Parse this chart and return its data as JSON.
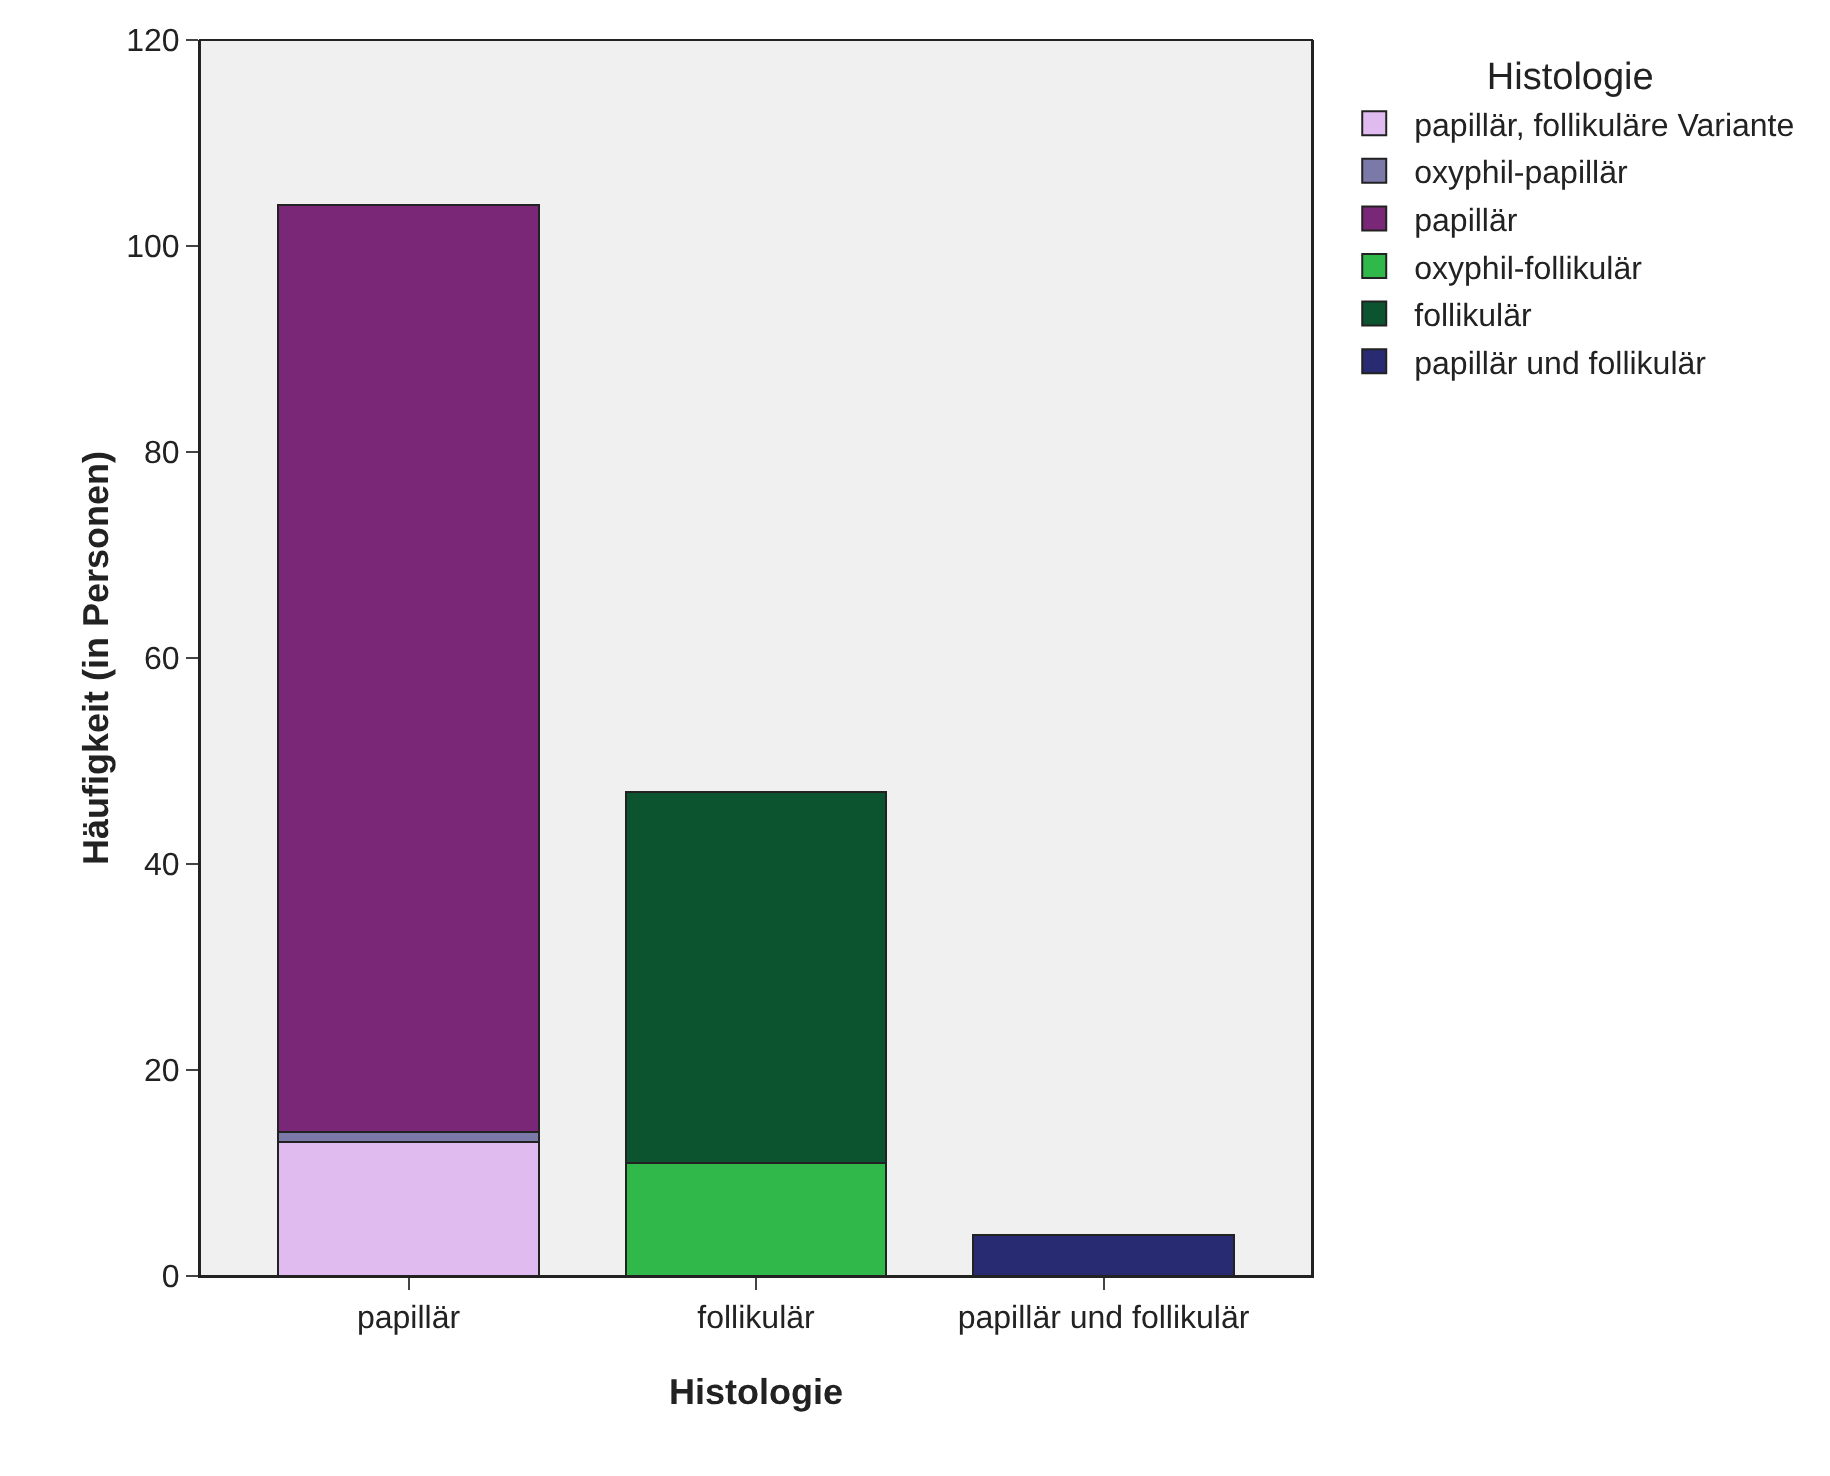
{
  "chart_data": {
    "type": "bar",
    "stacked": true,
    "xlabel": "Histologie",
    "ylabel": "Häufigkeit (in Personen)",
    "legend_title": "Histologie",
    "categories": [
      "papillär",
      "follikulär",
      "papillär und follikulär"
    ],
    "series": [
      {
        "name": "papillär, follikuläre Variante",
        "color": "#dfbbf0",
        "values": [
          13,
          null,
          null
        ]
      },
      {
        "name": "oxyphil-papillär",
        "color": "#7b79a8",
        "values": [
          1,
          null,
          null
        ]
      },
      {
        "name": "papillär",
        "color": "#7b2778",
        "values": [
          90,
          null,
          null
        ]
      },
      {
        "name": "oxyphil-follikulär",
        "color": "#30b94a",
        "values": [
          null,
          11,
          null
        ]
      },
      {
        "name": "follikulär",
        "color": "#0b542f",
        "values": [
          null,
          36,
          null
        ]
      },
      {
        "name": "papillär und follikulär",
        "color": "#282a72",
        "values": [
          null,
          null,
          4
        ]
      }
    ],
    "ylim": [
      0,
      120
    ],
    "yticks": [
      0,
      20,
      40,
      60,
      80,
      100,
      120
    ],
    "grid": false,
    "legend": "right"
  }
}
